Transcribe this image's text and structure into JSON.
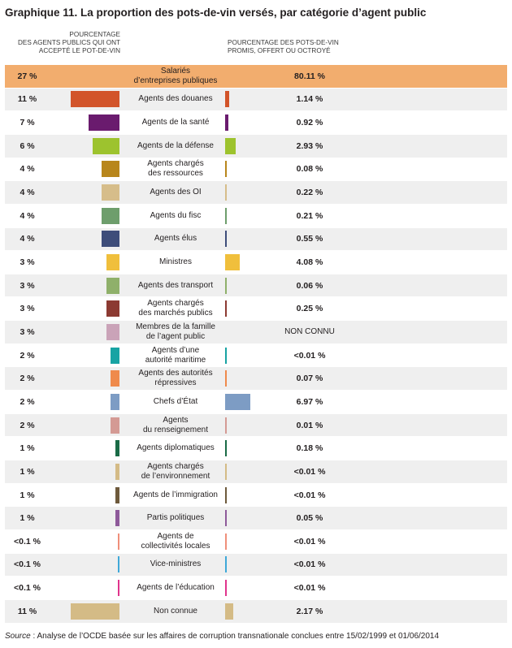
{
  "title": "Graphique 11. La proportion des pots-de-vin versés, par catégorie d’agent public",
  "header_left": [
    "POURCENTAGE",
    "DES AGENTS PUBLICS QUI ONT",
    "ACCEPTÉ LE POT-DE-VIN"
  ],
  "header_right": [
    "POURCENTAGE DES POTS-DE-VIN",
    "PROMIS, OFFERT OU OCTROYÉ"
  ],
  "source_label": "Source",
  "source_text": " : Analyse de l’OCDE basée sur les affaires de corruption transnationale conclues entre 15/02/1999 et 01/06/2014",
  "chart_data": {
    "type": "bar",
    "title": "Graphique 11. La proportion des pots-de-vin versés, par catégorie d’agent public",
    "series": [
      {
        "name": "POURCENTAGE DES AGENTS PUBLICS QUI ONT ACCEPTÉ LE POT-DE-VIN",
        "unit": "%"
      },
      {
        "name": "POURCENTAGE DES POTS-DE-VIN PROMIS, OFFERT OU OCTROYÉ",
        "unit": "%"
      }
    ],
    "rows": [
      {
        "category": [
          "Salariés",
          "d’entreprises publiques"
        ],
        "left_label": "27 %",
        "left_value": 27,
        "right_label": "80.11 %",
        "right_value": 80.11,
        "color": "#f2ad6e",
        "highlight": true
      },
      {
        "category": [
          "Agents des douanes"
        ],
        "left_label": "11 %",
        "left_value": 11,
        "right_label": "1.14 %",
        "right_value": 1.14,
        "color": "#d2542a"
      },
      {
        "category": [
          "Agents de la santé"
        ],
        "left_label": "7 %",
        "left_value": 7,
        "right_label": "0.92 %",
        "right_value": 0.92,
        "color": "#6a1b6e"
      },
      {
        "category": [
          "Agents de la défense"
        ],
        "left_label": "6 %",
        "left_value": 6,
        "right_label": "2.93 %",
        "right_value": 2.93,
        "color": "#9dc32e"
      },
      {
        "category": [
          "Agents chargés",
          "des ressources"
        ],
        "left_label": "4 %",
        "left_value": 4,
        "right_label": "0.08 %",
        "right_value": 0.08,
        "color": "#b8861c"
      },
      {
        "category": [
          "Agents des OI"
        ],
        "left_label": "4 %",
        "left_value": 4,
        "right_label": "0.22 %",
        "right_value": 0.22,
        "color": "#d6bd8a"
      },
      {
        "category": [
          "Agents du fisc"
        ],
        "left_label": "4 %",
        "left_value": 4,
        "right_label": "0.21 %",
        "right_value": 0.21,
        "color": "#6e9e6c"
      },
      {
        "category": [
          "Agents élus"
        ],
        "left_label": "4 %",
        "left_value": 4,
        "right_label": "0.55 %",
        "right_value": 0.55,
        "color": "#3e4d7a"
      },
      {
        "category": [
          "Ministres"
        ],
        "left_label": "3 %",
        "left_value": 3,
        "right_label": "4.08 %",
        "right_value": 4.08,
        "color": "#f0bf3c"
      },
      {
        "category": [
          "Agents des transport"
        ],
        "left_label": "3 %",
        "left_value": 3,
        "right_label": "0.06 %",
        "right_value": 0.06,
        "color": "#8fb06a"
      },
      {
        "category": [
          "Agents chargés",
          "des marchés publics"
        ],
        "left_label": "3 %",
        "left_value": 3,
        "right_label": "0.25 %",
        "right_value": 0.25,
        "color": "#8c3a32"
      },
      {
        "category": [
          "Membres de la famille",
          "de l’agent public"
        ],
        "left_label": "3 %",
        "left_value": 3,
        "right_label": "NON CONNU",
        "right_value": null,
        "color": "#caa3b8"
      },
      {
        "category": [
          "Agents d’une",
          "autorité maritime"
        ],
        "left_label": "2 %",
        "left_value": 2,
        "right_label": "<0.01 %",
        "right_value": 0.005,
        "color": "#17a3a3"
      },
      {
        "category": [
          "Agents des autorités",
          "répressives"
        ],
        "left_label": "2 %",
        "left_value": 2,
        "right_label": "0.07 %",
        "right_value": 0.07,
        "color": "#ef8a4c"
      },
      {
        "category": [
          "Chefs d’État"
        ],
        "left_label": "2 %",
        "left_value": 2,
        "right_label": "6.97 %",
        "right_value": 6.97,
        "color": "#7d9cc4"
      },
      {
        "category": [
          "Agents",
          "du renseignement"
        ],
        "left_label": "2 %",
        "left_value": 2,
        "right_label": "0.01 %",
        "right_value": 0.01,
        "color": "#d49a94"
      },
      {
        "category": [
          "Agents diplomatiques"
        ],
        "left_label": "1 %",
        "left_value": 1,
        "right_label": "0.18 %",
        "right_value": 0.18,
        "color": "#1a6b46"
      },
      {
        "category": [
          "Agents chargés",
          "de l’environnement"
        ],
        "left_label": "1 %",
        "left_value": 1,
        "right_label": "<0.01 %",
        "right_value": 0.005,
        "color": "#d4bb86"
      },
      {
        "category": [
          "Agents de l’immigration"
        ],
        "left_label": "1 %",
        "left_value": 1,
        "right_label": "<0.01 %",
        "right_value": 0.005,
        "color": "#6e5a3c"
      },
      {
        "category": [
          "Partis politiques"
        ],
        "left_label": "1 %",
        "left_value": 1,
        "right_label": "0.05 %",
        "right_value": 0.05,
        "color": "#8e5a9a"
      },
      {
        "category": [
          "Agents de",
          "collectivités locales"
        ],
        "left_label": "<0.1 %",
        "left_value": 0.05,
        "right_label": "<0.01 %",
        "right_value": 0.005,
        "color": "#ef8f7a"
      },
      {
        "category": [
          "Vice-ministres"
        ],
        "left_label": "<0.1 %",
        "left_value": 0.05,
        "right_label": "<0.01 %",
        "right_value": 0.005,
        "color": "#3fa8d8"
      },
      {
        "category": [
          "Agents de l’éducation"
        ],
        "left_label": "<0.1 %",
        "left_value": 0.05,
        "right_label": "<0.01 %",
        "right_value": 0.005,
        "color": "#e0348c"
      },
      {
        "category": [
          "Non connue"
        ],
        "left_label": "11 %",
        "left_value": 11,
        "right_label": "2.17 %",
        "right_value": 2.17,
        "color": "#d4bb86"
      }
    ]
  }
}
